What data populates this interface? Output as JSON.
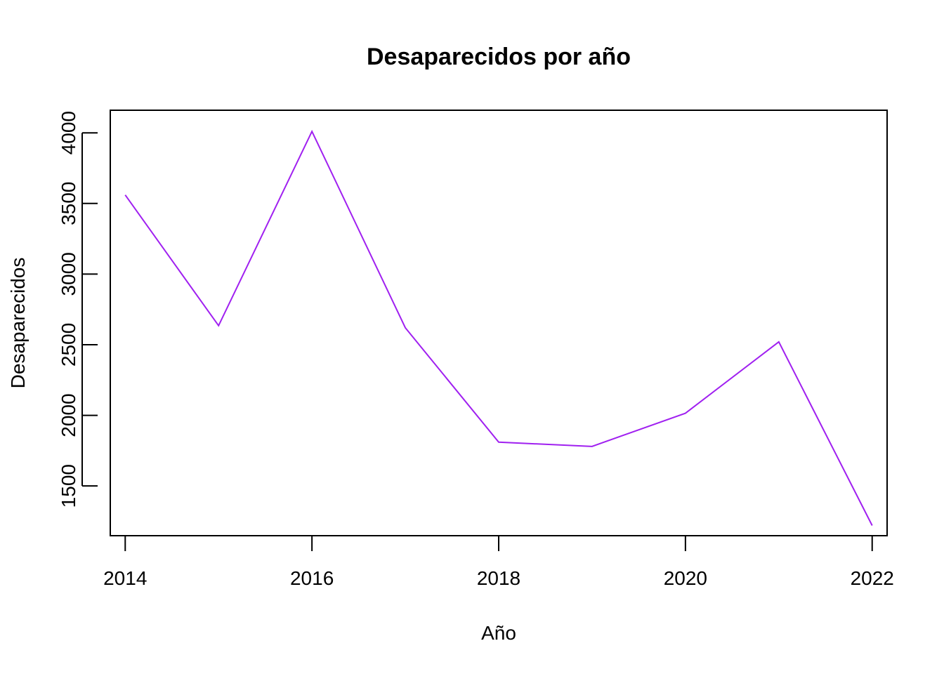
{
  "chart_data": {
    "type": "line",
    "title": "Desaparecidos por año",
    "xlabel": "Año",
    "ylabel": "Desaparecidos",
    "x": [
      2014,
      2015,
      2016,
      2017,
      2018,
      2019,
      2020,
      2021,
      2022
    ],
    "series": [
      {
        "values": [
          3560,
          2635,
          4010,
          2620,
          1810,
          1780,
          2015,
          2520,
          1220
        ],
        "color": "#a020f0"
      }
    ],
    "xticks": [
      "2014",
      "2016",
      "2018",
      "2020",
      "2022"
    ],
    "yticks": [
      "1500",
      "2000",
      "2500",
      "3000",
      "3500",
      "4000"
    ],
    "xlim": [
      2013.84,
      2022.16
    ],
    "ylim": [
      1148,
      4160
    ],
    "grid": false,
    "legend": "none"
  }
}
